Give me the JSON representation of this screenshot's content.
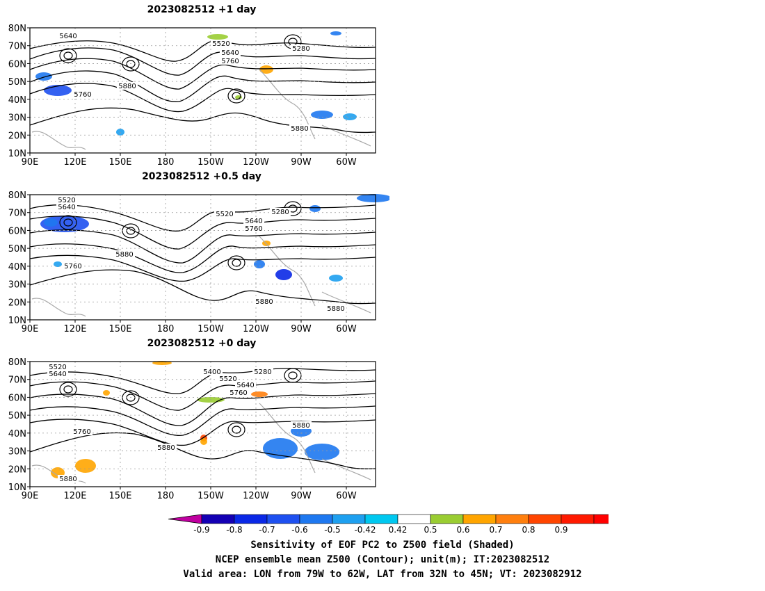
{
  "panels": [
    {
      "title": "2023082512  +1 day",
      "contour_labels": [
        "5640",
        "5520",
        "5640",
        "5760",
        "5280",
        "5880",
        "5760",
        "5880"
      ]
    },
    {
      "title": "2023082512  +0.5 day",
      "contour_labels": [
        "5520",
        "5640",
        "5520",
        "5280",
        "5640",
        "5760",
        "5880",
        "5760",
        "5880",
        "5880"
      ]
    },
    {
      "title": "2023082512  +0 day",
      "contour_labels": [
        "5520",
        "5640",
        "5400",
        "5520",
        "5280",
        "5640",
        "5760",
        "5880",
        "5760",
        "5880",
        "5880"
      ]
    }
  ],
  "axes": {
    "y_ticks": [
      "80N",
      "70N",
      "60N",
      "50N",
      "40N",
      "30N",
      "20N",
      "10N"
    ],
    "x_ticks": [
      "90E",
      "120E",
      "150E",
      "180",
      "150W",
      "120W",
      "90W",
      "60W"
    ]
  },
  "colorbar": {
    "ticks": [
      "-0.9",
      "-0.8",
      "-0.7",
      "-0.6",
      "-0.5",
      "-0.42",
      "0.42",
      "0.5",
      "0.6",
      "0.7",
      "0.8",
      "0.9"
    ],
    "colors": [
      "#c000a0",
      "#1400b4",
      "#0a28e6",
      "#1e50f0",
      "#1e78f0",
      "#1ea0f0",
      "#00c8f0",
      "#ffffff",
      "#9acd32",
      "#ffa500",
      "#ff7f0e",
      "#ff4500",
      "#ff1a00",
      "#ff0000",
      "#ffaad4"
    ]
  },
  "footer": {
    "line1": "Sensitivity of EOF PC2 to Z500 field (Shaded)",
    "line2": "NCEP ensemble mean Z500 (Contour); unit(m); IT:2023082512",
    "line3": "Valid area: LON from 79W to 62W, LAT from 32N to 45N; VT: 2023082912"
  }
}
